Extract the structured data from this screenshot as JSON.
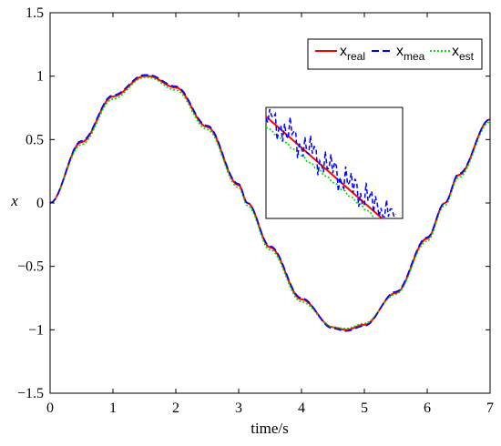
{
  "chart_data": {
    "type": "line",
    "xlabel": "time/s",
    "ylabel": "x",
    "xlim": [
      0,
      7
    ],
    "ylim": [
      -1.5,
      1.5
    ],
    "xticks": [
      "0",
      "1",
      "2",
      "3",
      "4",
      "5",
      "6",
      "7"
    ],
    "yticks": [
      "1.5",
      "1",
      "0.5",
      "0",
      "−0.5",
      "−1",
      "−1.5"
    ],
    "grid": false,
    "legend_position": "top-right",
    "legend": [
      {
        "base": "x",
        "sub": "real"
      },
      {
        "base": "x",
        "sub": "mea"
      },
      {
        "base": "x",
        "sub": "est"
      }
    ],
    "series": [
      {
        "key": "real",
        "style": "solid",
        "color": "#ff0000",
        "x": [
          0,
          0.5,
          1,
          1.5,
          1.57,
          2,
          2.5,
          3,
          3.14,
          3.5,
          4,
          4.5,
          4.71,
          5,
          5.5,
          6,
          6.28,
          6.5,
          7
        ],
        "y": [
          0,
          0.48,
          0.84,
          1.0,
          1.0,
          0.91,
          0.6,
          0.14,
          0,
          -0.35,
          -0.76,
          -0.98,
          -1.0,
          -0.96,
          -0.71,
          -0.28,
          0,
          0.22,
          0.66
        ]
      },
      {
        "key": "mea",
        "style": "dashed",
        "color": "#0000ff",
        "x": [
          0,
          0.5,
          1,
          1.5,
          1.57,
          2,
          2.5,
          3,
          3.14,
          3.5,
          4,
          4.5,
          4.71,
          5,
          5.5,
          6,
          6.28,
          6.5,
          7
        ],
        "y": [
          0,
          0.49,
          0.85,
          1.01,
          1.01,
          0.92,
          0.61,
          0.15,
          0,
          -0.34,
          -0.75,
          -0.99,
          -1.01,
          -0.97,
          -0.7,
          -0.27,
          0,
          0.23,
          0.66
        ]
      },
      {
        "key": "est",
        "style": "dotted",
        "color": "#00dd00",
        "x": [
          0,
          0.5,
          1,
          1.5,
          1.57,
          2,
          2.5,
          3,
          3.14,
          3.5,
          4,
          4.5,
          4.71,
          5,
          5.5,
          6,
          6.28,
          6.5,
          7
        ],
        "y": [
          0,
          0.46,
          0.82,
          0.99,
          0.99,
          0.89,
          0.58,
          0.12,
          -0.02,
          -0.37,
          -0.78,
          -0.98,
          -0.99,
          -0.95,
          -0.72,
          -0.3,
          -0.02,
          0.2,
          0.64
        ]
      }
    ]
  }
}
